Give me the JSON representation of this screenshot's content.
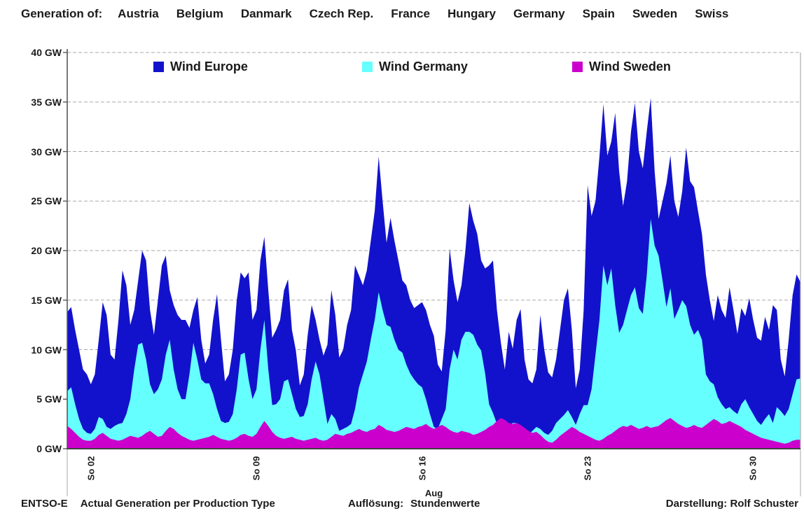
{
  "header": {
    "prefix": "Generation of:",
    "countries": [
      "Austria",
      "Belgium",
      "Danmark",
      "Czech Rep.",
      "France",
      "Hungary",
      "Germany",
      "Spain",
      "Sweden",
      "Swiss"
    ]
  },
  "legend": [
    {
      "label": "Wind Europe",
      "color": "#1212CC"
    },
    {
      "label": "Wind Germany",
      "color": "#66FFFF"
    },
    {
      "label": "Wind Sweden",
      "color": "#CC00CC"
    }
  ],
  "y_axis": {
    "labels": [
      "40 GW",
      "35 GW",
      "30 GW",
      "25 GW",
      "20 GW",
      "15 GW",
      "10 GW",
      "5 GW",
      "0 GW"
    ],
    "min": 0,
    "max": 40,
    "step": 5,
    "unit": "GW"
  },
  "x_axis": {
    "ticks": [
      {
        "label": "So 02",
        "day": 2
      },
      {
        "label": "So 09",
        "day": 9
      },
      {
        "label": "So 16",
        "day": 16
      },
      {
        "label": "So 23",
        "day": 23
      },
      {
        "label": "So 30",
        "day": 30
      }
    ],
    "month_label": "Aug",
    "days_in_month": 31
  },
  "footer": {
    "source": "ENTSO-E",
    "left_text": "Actual Generation per Production Type",
    "center_label": "Auflösung:",
    "center_value": "Stundenwerte",
    "right_text": "Darstellung: Rolf Schuster"
  },
  "colors": {
    "grid": "#a9a9a9",
    "axis": "#595959",
    "axis_bottom": "#404040",
    "frame_light": "#b8b8b8"
  },
  "chart_data": {
    "type": "area",
    "overlaid": true,
    "title": "",
    "xlabel": "Aug",
    "ylabel": "GW",
    "ylim": [
      0,
      40
    ],
    "x_start_day": 1,
    "x_step_hours": 4,
    "x_range": "August, days 1-31, hourly data sampled every 4 h",
    "grid": true,
    "legend_position": "top-inside",
    "series": [
      {
        "name": "Wind Europe",
        "color": "#1212CC",
        "values": [
          13.8,
          14.3,
          12,
          10,
          8,
          7.5,
          6.5,
          7.5,
          11,
          14.8,
          13.5,
          9.5,
          9,
          13,
          18,
          16.5,
          12.5,
          14,
          17,
          20,
          19,
          14,
          11.5,
          15,
          18.5,
          19.5,
          16,
          14.5,
          13.5,
          13,
          13,
          12.2,
          14,
          15.3,
          11,
          8.6,
          9.5,
          13,
          15.6,
          11,
          6.8,
          7.5,
          10,
          15,
          17.8,
          17.2,
          17.8,
          13,
          14,
          19,
          21.4,
          16,
          11.2,
          12,
          13,
          16,
          17.1,
          12,
          9.9,
          6.4,
          7.5,
          11.5,
          14.5,
          13,
          11,
          9.4,
          10.5,
          16,
          13.5,
          9.2,
          10,
          12.5,
          14,
          18.5,
          17.5,
          16.5,
          18,
          21,
          24,
          29.5,
          25,
          20.8,
          23.3,
          21,
          19,
          17,
          16.5,
          15,
          14.2,
          14.5,
          14.8,
          14,
          12.5,
          11.4,
          8.5,
          7.8,
          12,
          20.2,
          17,
          14.8,
          16.5,
          20,
          24.8,
          23,
          21.7,
          19,
          18.2,
          18.5,
          19,
          14,
          10.7,
          8,
          11.8,
          10.1,
          13,
          14.1,
          9,
          7,
          6.6,
          8,
          13.5,
          10,
          7.7,
          7.2,
          9,
          12,
          15,
          16.2,
          12,
          6.1,
          8,
          14,
          26.6,
          23.5,
          25,
          29.5,
          34.8,
          29.6,
          31,
          33.9,
          28,
          24.5,
          27,
          32,
          34.9,
          30,
          28.3,
          32,
          35.4,
          28,
          23.2,
          25,
          26.8,
          29.6,
          25,
          23.4,
          26,
          30.4,
          27,
          26.4,
          24,
          21.7,
          17.6,
          15,
          12.9,
          15.5,
          14,
          13.2,
          16.3,
          14,
          11.6,
          14.2,
          13.4,
          15.2,
          13,
          11.2,
          10.9,
          13.3,
          12,
          14.5,
          14,
          9,
          7.3,
          11,
          15.5,
          17.6,
          16.8
        ]
      },
      {
        "name": "Wind Germany",
        "color": "#66FFFF",
        "values": [
          5.8,
          6.2,
          4.5,
          3,
          2,
          1.6,
          1.5,
          2,
          3.2,
          3,
          2.2,
          2,
          2.3,
          2.5,
          2.6,
          3.5,
          5,
          8,
          10.5,
          10.7,
          9,
          6.5,
          5.5,
          6,
          7,
          9.5,
          11,
          8,
          6,
          5,
          5,
          7.5,
          10.7,
          9,
          7,
          6.6,
          6.6,
          5.5,
          4,
          2.8,
          2.6,
          2.7,
          3.5,
          6,
          9.5,
          9.7,
          7,
          5,
          6,
          10,
          13,
          8,
          4.4,
          4.5,
          5,
          6.8,
          7,
          5.5,
          4,
          3.2,
          3.3,
          4.5,
          7,
          8.8,
          7.5,
          5,
          2.5,
          3.5,
          3,
          1.8,
          2,
          2.2,
          2.5,
          4,
          6.2,
          7.5,
          8.8,
          11,
          13,
          15.8,
          14,
          12.5,
          12.3,
          11,
          10,
          9.7,
          8.5,
          7.6,
          7,
          6.5,
          6.2,
          5,
          3.5,
          2.2,
          2,
          3,
          4,
          8,
          10,
          9,
          11,
          11.8,
          11.8,
          11.5,
          10.5,
          9.9,
          7.6,
          4.5,
          3.6,
          2.5,
          2,
          1.8,
          2.2,
          2.6,
          2.6,
          2.2,
          1.6,
          1.4,
          1.8,
          2.2,
          2,
          1.6,
          1.4,
          1.8,
          2.6,
          3,
          3.4,
          3.9,
          3.2,
          2.4,
          3.5,
          4.4,
          4.4,
          6,
          9.5,
          13,
          18.5,
          16.5,
          18.2,
          14.5,
          11.7,
          12.5,
          14,
          15.5,
          16.3,
          14.2,
          13.6,
          17.5,
          23.2,
          20.5,
          19.5,
          17,
          14.3,
          16.2,
          13.1,
          14,
          15,
          14.4,
          12.5,
          11.5,
          12,
          11,
          7.5,
          6.8,
          6.5,
          5.2,
          4.5,
          4,
          4.2,
          3.8,
          3.5,
          4.5,
          5,
          4.2,
          3.5,
          2.8,
          2.4,
          3,
          3.5,
          2.6,
          4.2,
          3.8,
          3.3,
          4,
          5.5,
          7,
          7.1
        ]
      },
      {
        "name": "Wind Sweden",
        "color": "#CC00CC",
        "values": [
          2.3,
          2,
          1.6,
          1.2,
          0.9,
          0.8,
          0.8,
          1,
          1.4,
          1.6,
          1.3,
          1,
          0.9,
          0.8,
          0.9,
          1.1,
          1.3,
          1.2,
          1.1,
          1.3,
          1.6,
          1.8,
          1.5,
          1.2,
          1.3,
          1.8,
          2.2,
          2,
          1.6,
          1.3,
          1.1,
          0.9,
          0.8,
          0.9,
          1,
          1.1,
          1.2,
          1.4,
          1.2,
          1,
          0.9,
          0.8,
          0.9,
          1.1,
          1.4,
          1.5,
          1.3,
          1.2,
          1.5,
          2.2,
          2.8,
          2.3,
          1.7,
          1.3,
          1.1,
          1,
          1.1,
          1.2,
          1,
          0.9,
          0.8,
          0.9,
          1,
          1.1,
          0.9,
          0.8,
          0.9,
          1.2,
          1.5,
          1.4,
          1.3,
          1.5,
          1.6,
          1.8,
          2,
          1.8,
          1.7,
          1.9,
          2,
          2.4,
          2.2,
          1.9,
          1.8,
          1.7,
          1.8,
          2,
          2.2,
          2.1,
          2,
          2.2,
          2.3,
          2.5,
          2.2,
          2,
          2.2,
          2.4,
          2.2,
          1.9,
          1.7,
          1.6,
          1.8,
          1.7,
          1.6,
          1.4,
          1.5,
          1.7,
          1.9,
          2.2,
          2.4,
          2.8,
          3.1,
          2.9,
          2.6,
          2.5,
          2.6,
          2.4,
          2.1,
          1.8,
          1.6,
          1.7,
          1.4,
          1,
          0.7,
          0.6,
          0.9,
          1.3,
          1.6,
          1.9,
          2.2,
          2,
          1.7,
          1.5,
          1.3,
          1.1,
          0.9,
          0.8,
          1,
          1.3,
          1.5,
          1.8,
          2.1,
          2.3,
          2.2,
          2.4,
          2.2,
          2,
          2.1,
          2.3,
          2.1,
          2.2,
          2.3,
          2.6,
          2.9,
          3.1,
          2.8,
          2.5,
          2.3,
          2.1,
          2.2,
          2.4,
          2.2,
          2.1,
          2.4,
          2.7,
          3,
          2.8,
          2.5,
          2.6,
          2.8,
          2.6,
          2.4,
          2.2,
          1.9,
          1.7,
          1.5,
          1.3,
          1.1,
          1,
          0.9,
          0.8,
          0.7,
          0.6,
          0.5,
          0.6,
          0.8,
          0.9,
          0.9
        ]
      }
    ]
  }
}
